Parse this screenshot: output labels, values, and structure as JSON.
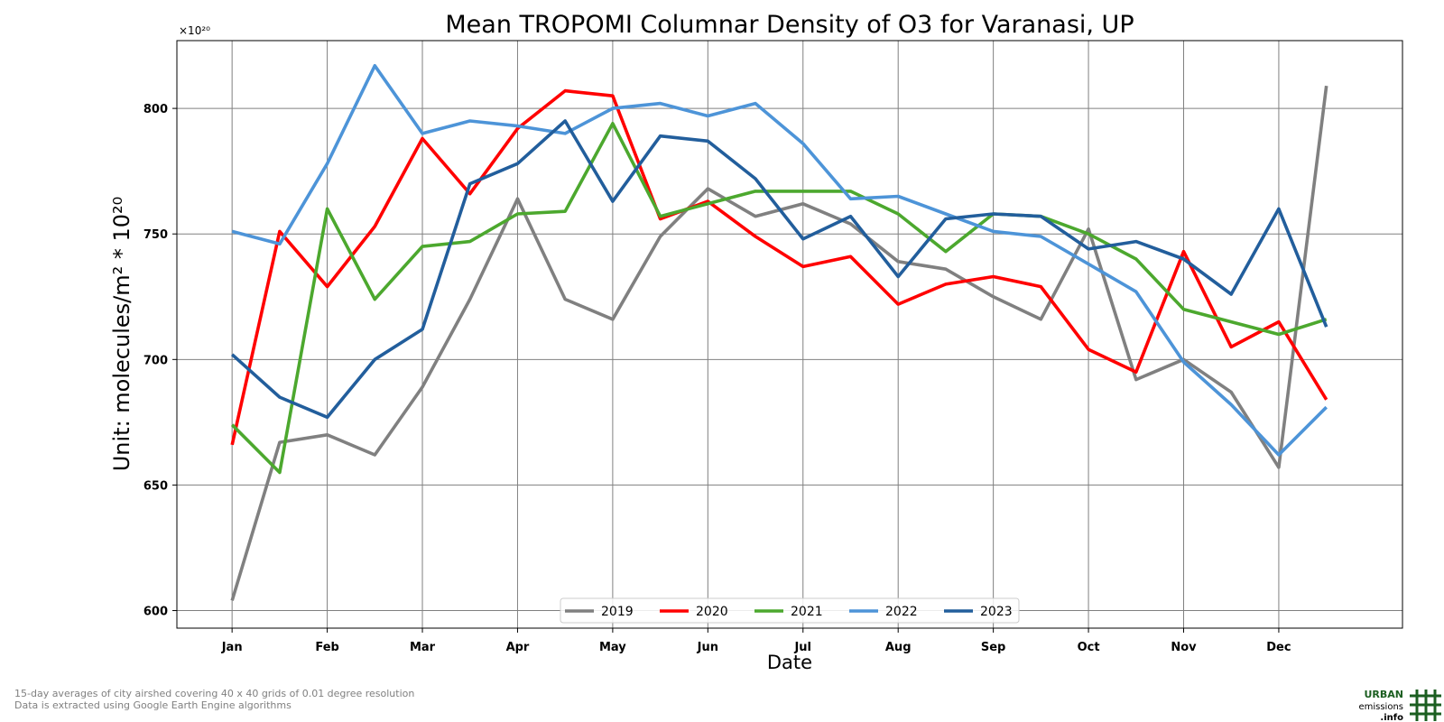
{
  "chart_data": {
    "type": "line",
    "title": "Mean TROPOMI Columnar Density of O3 for Varanasi, UP",
    "xlabel": "Date",
    "ylabel": "Unit: molecules/m² * 10²⁰",
    "exponent_label": "×10²⁰",
    "ylim": [
      593,
      827
    ],
    "yticks": [
      600,
      650,
      700,
      750,
      800
    ],
    "xlim": [
      -0.58,
      12.3
    ],
    "x_ticks": [
      "Jan",
      "Feb",
      "Mar",
      "Apr",
      "May",
      "Jun",
      "Jul",
      "Aug",
      "Sep",
      "Oct",
      "Nov",
      "Dec"
    ],
    "x": [
      0,
      0.5,
      1,
      1.5,
      2,
      2.5,
      3,
      3.5,
      4,
      4.5,
      5,
      5.5,
      6,
      6.5,
      7,
      7.5,
      8,
      8.5,
      9,
      9.5,
      10,
      10.5,
      11,
      11.5
    ],
    "grid": true,
    "legend_position": "lower center",
    "series": [
      {
        "name": "2019",
        "color": "#808080",
        "values": [
          604,
          667,
          670,
          662,
          689,
          724,
          764,
          724,
          716,
          749,
          768,
          757,
          762,
          754,
          739,
          736,
          725,
          716,
          752,
          692,
          700,
          687,
          657,
          809
        ]
      },
      {
        "name": "2020",
        "color": "#ff0000",
        "values": [
          666,
          751,
          729,
          753,
          788,
          766,
          792,
          807,
          805,
          756,
          763,
          749,
          737,
          741,
          722,
          730,
          733,
          729,
          704,
          695,
          743,
          705,
          715,
          684
        ]
      },
      {
        "name": "2021",
        "color": "#4ca82e",
        "values": [
          674,
          655,
          760,
          724,
          745,
          747,
          758,
          759,
          794,
          757,
          762,
          767,
          767,
          767,
          758,
          743,
          758,
          757,
          750,
          740,
          720,
          715,
          710,
          716
        ]
      },
      {
        "name": "2022",
        "color": "#4d94d8",
        "values": [
          751,
          746,
          778,
          817,
          790,
          795,
          793,
          790,
          800,
          802,
          797,
          802,
          786,
          764,
          765,
          758,
          751,
          749,
          738,
          727,
          699,
          682,
          662,
          681
        ]
      },
      {
        "name": "2023",
        "color": "#225e9c",
        "values": [
          702,
          685,
          677,
          700,
          712,
          770,
          778,
          795,
          763,
          789,
          787,
          772,
          748,
          757,
          733,
          756,
          758,
          757,
          744,
          747,
          740,
          726,
          760,
          713
        ]
      }
    ]
  },
  "footnotes": {
    "line1": "15-day averages of city airshed covering 40 x 40 grids of 0.01 degree resolution",
    "line2": "Data is extracted using Google Earth Engine algorithms"
  },
  "logo": {
    "line1": "URBAN",
    "line2": "emissions",
    "line3": ".info",
    "color": "#1b5e20"
  }
}
